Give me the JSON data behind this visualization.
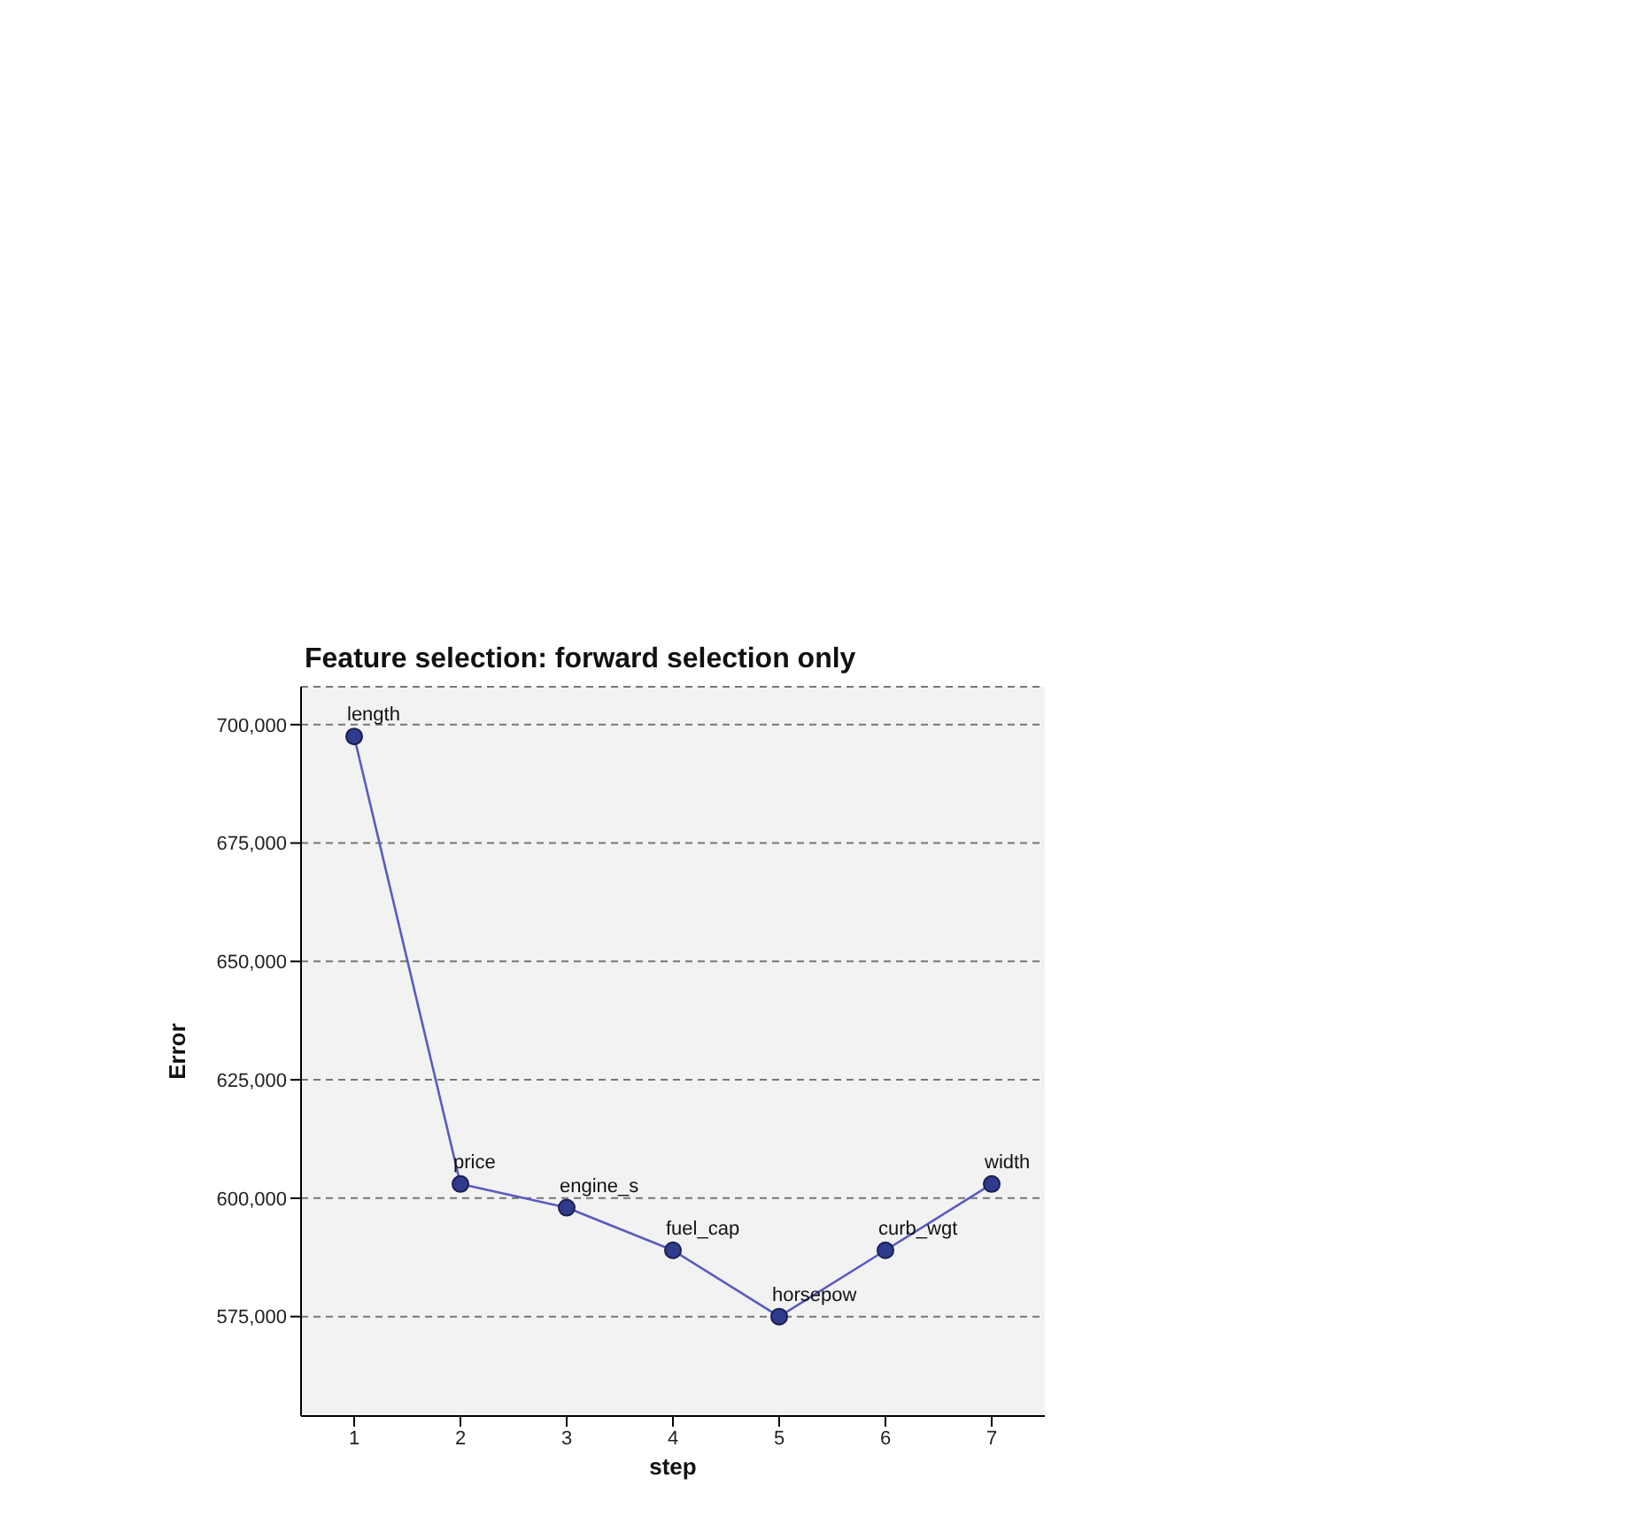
{
  "chart_data": {
    "type": "line",
    "title": "Feature selection: forward selection only",
    "xlabel": "step",
    "ylabel": "Error",
    "x": [
      1,
      2,
      3,
      4,
      5,
      6,
      7
    ],
    "series": [
      {
        "color": "#5a5ac0",
        "values": [
          697500,
          603000,
          598000,
          589000,
          575000,
          589000,
          603000
        ]
      }
    ],
    "xlim": [
      0.5,
      7.5
    ],
    "xticks": [
      1,
      2,
      3,
      4,
      5,
      6,
      7
    ],
    "ylim": [
      554000,
      708000
    ],
    "yticks": [
      {
        "value": 575000,
        "label": "575,000"
      },
      {
        "value": 600000,
        "label": "600,000"
      },
      {
        "value": 625000,
        "label": "625,000"
      },
      {
        "value": 650000,
        "label": "650,000"
      },
      {
        "value": 675000,
        "label": "675,000"
      },
      {
        "value": 700000,
        "label": "700,000"
      }
    ],
    "grid": "y",
    "marker": "circle",
    "line_style": "solid",
    "legend": false,
    "annotations": [
      {
        "text": "length",
        "x": 1,
        "y": 697500
      },
      {
        "text": "price",
        "x": 2,
        "y": 603000
      },
      {
        "text": "engine_s",
        "x": 3,
        "y": 598000
      },
      {
        "text": "fuel_cap",
        "x": 4,
        "y": 589000
      },
      {
        "text": "horsepow",
        "x": 5,
        "y": 575000
      },
      {
        "text": "curb_wgt",
        "x": 6,
        "y": 589000
      },
      {
        "text": "width",
        "x": 7,
        "y": 603000
      }
    ]
  }
}
